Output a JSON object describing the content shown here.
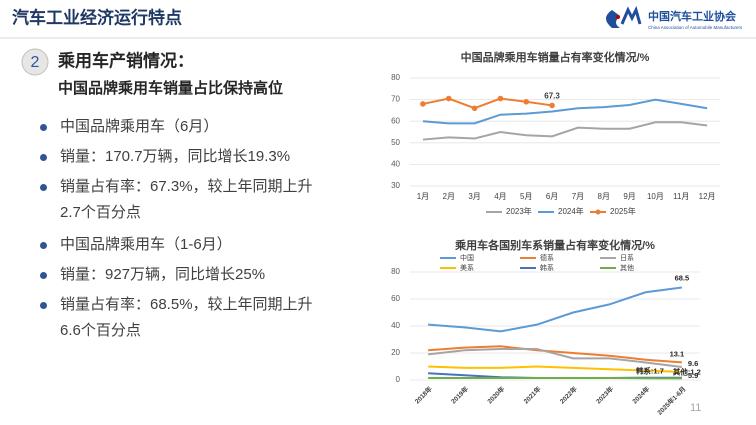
{
  "header": {
    "title": "汽车工业经济运行特点",
    "logo": "中国汽车工业协会",
    "logo_sub": "China Association of Automobile Manufacturers"
  },
  "section": {
    "number": "2",
    "title": "乘用车产销情况：",
    "subtitle": "中国品牌乘用车销量占比保持高位"
  },
  "bullets": [
    "中国品牌乘用车（6月）",
    "销量：170.7万辆，同比增长19.3%",
    "销量占有率：67.3%，较上年同期上升2.7个百分点",
    "中国品牌乘用车（1-6月）",
    "销量：927万辆，同比增长25%",
    "销量占有率：68.5%，较上年同期上升6.6个百分点"
  ],
  "page_number": "11",
  "chart_data": [
    {
      "type": "line",
      "title": "中国品牌乘用车销量占有率变化情况/%",
      "categories": [
        "1月",
        "2月",
        "3月",
        "4月",
        "5月",
        "6月",
        "7月",
        "8月",
        "9月",
        "10月",
        "11月",
        "12月"
      ],
      "ylim": [
        30,
        80
      ],
      "yticks": [
        30,
        40,
        50,
        60,
        70,
        80
      ],
      "grid": true,
      "legend": "bottom",
      "series": [
        {
          "name": "2023年",
          "color": "#a5a5a5",
          "values": [
            51.5,
            52.5,
            52,
            55,
            53.5,
            53,
            57,
            56.5,
            56.5,
            59.5,
            59.5,
            58
          ]
        },
        {
          "name": "2024年",
          "color": "#5b9bd5",
          "values": [
            60,
            59,
            59,
            63,
            63.5,
            64.5,
            66,
            66.5,
            67.5,
            70,
            68,
            66
          ]
        },
        {
          "name": "2025年",
          "color": "#ed7d31",
          "marker": "circle",
          "values": [
            68,
            70.5,
            66,
            70.5,
            69,
            67.3,
            null,
            null,
            null,
            null,
            null,
            null
          ],
          "value_labels": [
            null,
            null,
            null,
            null,
            null,
            "67.3",
            null,
            null,
            null,
            null,
            null,
            null
          ]
        }
      ]
    },
    {
      "type": "line",
      "title": "乘用车各国别车系销量占有率变化情况/%",
      "categories": [
        "2018年",
        "2019年",
        "2020年",
        "2021年",
        "2022年",
        "2023年",
        "2024年",
        "2025年1-6月"
      ],
      "ylim": [
        0,
        80
      ],
      "yticks": [
        0,
        20,
        40,
        60,
        80
      ],
      "grid": true,
      "legend": "top",
      "series": [
        {
          "name": "中国",
          "color": "#5b9bd5",
          "values": [
            41,
            39,
            36,
            41,
            50,
            56,
            65,
            68.5
          ],
          "value_labels": [
            null,
            null,
            null,
            null,
            null,
            null,
            null,
            "68.5"
          ]
        },
        {
          "name": "德系",
          "color": "#ed7d31",
          "values": [
            22,
            24,
            25,
            22,
            20,
            18,
            15,
            13.1
          ],
          "value_labels": [
            null,
            null,
            null,
            null,
            null,
            null,
            null,
            "13.1"
          ]
        },
        {
          "name": "日系",
          "color": "#a5a5a5",
          "values": [
            19,
            22,
            23,
            23,
            16,
            16,
            13,
            9.6
          ],
          "value_labels": [
            null,
            null,
            null,
            null,
            null,
            null,
            null,
            "9.6"
          ]
        },
        {
          "name": "美系",
          "color": "#ffc000",
          "values": [
            10,
            9,
            9,
            10,
            9,
            8,
            7,
            5.9
          ],
          "value_labels": [
            null,
            null,
            null,
            null,
            null,
            null,
            null,
            "5.9"
          ]
        },
        {
          "name": "韩系",
          "color": "#4472c4",
          "values": [
            5,
            3.5,
            2,
            1.5,
            1.5,
            1.5,
            1.7,
            1.7
          ],
          "value_labels": [
            null,
            null,
            null,
            null,
            null,
            null,
            null,
            "韩系:1.7"
          ]
        },
        {
          "name": "其他",
          "color": "#70ad47",
          "values": [
            1.5,
            1.5,
            1.5,
            1.5,
            1.5,
            1.5,
            1.3,
            1.2
          ],
          "value_labels": [
            null,
            null,
            null,
            null,
            null,
            null,
            null,
            "其他:1.2"
          ]
        }
      ]
    }
  ]
}
